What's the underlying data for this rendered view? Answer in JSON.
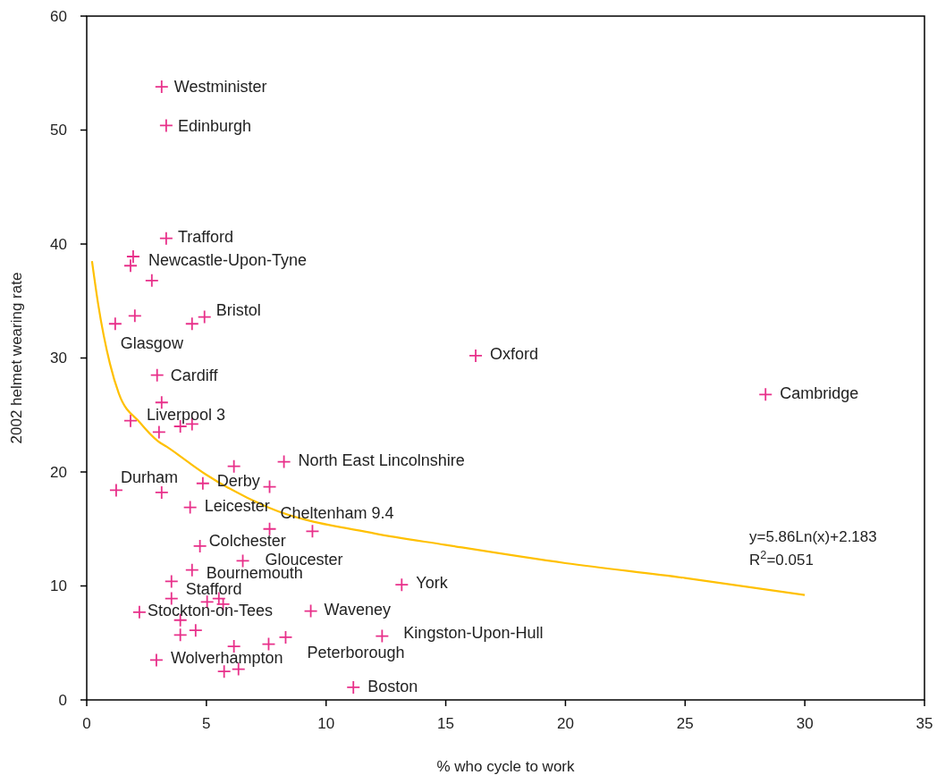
{
  "chart_data": {
    "type": "scatter",
    "xlabel": "% who cycle to work",
    "ylabel": "2002 helmet wearing rate",
    "xlim": [
      0,
      35
    ],
    "xticks": [
      0,
      5,
      10,
      15,
      20,
      25,
      30,
      35
    ],
    "ylim": [
      0,
      60
    ],
    "yticks": [
      0,
      10,
      20,
      30,
      40,
      50,
      60
    ],
    "grid": false,
    "marker": "cross",
    "series": [
      {
        "color": "#e8308a",
        "x": [
          3.13,
          3.32,
          3.32,
          1.94,
          1.83,
          2.72,
          1.19,
          2.01,
          4.4,
          4.92,
          2.94,
          3.13,
          1.83,
          3.02,
          3.91,
          4.4,
          16.25,
          28.36,
          8.24,
          6.15,
          1.23,
          3.13,
          4.85,
          7.64,
          4.32,
          7.64,
          9.43,
          4.73,
          6.52,
          4.4,
          3.54,
          3.54,
          5.03,
          5.52,
          5.7,
          2.2,
          13.16,
          9.36,
          3.91,
          4.55,
          3.91,
          6.15,
          7.6,
          8.31,
          12.34,
          2.91,
          5.74,
          6.34,
          11.14
        ],
        "values": [
          53.8,
          50.4,
          40.5,
          38.9,
          38.1,
          36.8,
          33.0,
          33.7,
          33.0,
          33.6,
          28.5,
          26.1,
          24.5,
          23.5,
          24.0,
          24.2,
          30.2,
          26.8,
          20.9,
          20.5,
          18.4,
          18.2,
          19.0,
          18.7,
          16.9,
          15.0,
          14.8,
          13.5,
          12.2,
          11.4,
          10.4,
          8.9,
          8.6,
          8.9,
          8.4,
          7.7,
          10.1,
          7.8,
          7.0,
          6.1,
          5.7,
          4.7,
          4.9,
          5.5,
          5.6,
          3.5,
          2.5,
          2.7,
          1.1
        ]
      },
      {
        "type": "line",
        "color": "#ffc000",
        "marker": "none",
        "line_style": "solid",
        "x": [
          0.22,
          0.48,
          0.97,
          1.34,
          2.24,
          2.98,
          3.35,
          4.96,
          7.57,
          12.04,
          15,
          20,
          25,
          30
        ],
        "values": [
          38.5,
          34.7,
          29.5,
          26.9,
          24.3,
          22.7,
          22.2,
          19.8,
          16.9,
          14.6,
          13.6,
          12.0,
          10.7,
          9.2
        ]
      }
    ],
    "annotations": [
      {
        "text": "Westminister",
        "x": 3.13,
        "y": 53.8
      },
      {
        "text": "Edinburgh",
        "x": 3.32,
        "y": 50.4
      },
      {
        "text": "Trafford",
        "x": 3.32,
        "y": 40.5
      },
      {
        "text": "Newcastle-Upon-Tyne",
        "x": 1.94,
        "y": 38.9
      },
      {
        "text": "Bristol",
        "x": 4.92,
        "y": 33.6
      },
      {
        "text": "Glasgow",
        "x": 1.19,
        "y": 33.0
      },
      {
        "text": "Cardiff",
        "x": 2.94,
        "y": 28.5
      },
      {
        "text": "Liverpool 3",
        "x": 1.83,
        "y": 24.5
      },
      {
        "text": "Oxford",
        "x": 16.25,
        "y": 30.2
      },
      {
        "text": "Cambridge",
        "x": 28.36,
        "y": 26.8
      },
      {
        "text": "North East Lincolnshire",
        "x": 8.24,
        "y": 20.9
      },
      {
        "text": "Durham",
        "x": 1.23,
        "y": 18.4
      },
      {
        "text": "Derby",
        "x": 4.85,
        "y": 19.0
      },
      {
        "text": "Leicester",
        "x": 4.32,
        "y": 16.9
      },
      {
        "text": "Cheltenham 9.4",
        "x": 7.64,
        "y": 15.0
      },
      {
        "text": "Colchester",
        "x": 4.73,
        "y": 13.5
      },
      {
        "text": "Gloucester",
        "x": 6.52,
        "y": 12.2
      },
      {
        "text": "Bournemouth",
        "x": 4.4,
        "y": 11.4
      },
      {
        "text": "Stafford",
        "x": 3.54,
        "y": 10.4
      },
      {
        "text": "Stockton-on-Tees",
        "x": 2.2,
        "y": 7.7
      },
      {
        "text": "York",
        "x": 13.16,
        "y": 10.1
      },
      {
        "text": "Waveney",
        "x": 9.36,
        "y": 7.8
      },
      {
        "text": "Kingston-Upon-Hull",
        "x": 12.34,
        "y": 5.6
      },
      {
        "text": "Wolverhampton",
        "x": 2.91,
        "y": 3.5
      },
      {
        "text": "Peterborough",
        "x": 8.31,
        "y": 5.5
      },
      {
        "text": "Boston",
        "x": 11.14,
        "y": 1.1
      },
      "y=5.86Ln(x)+2.183",
      "R$^{2}$=0.051"
    ]
  }
}
